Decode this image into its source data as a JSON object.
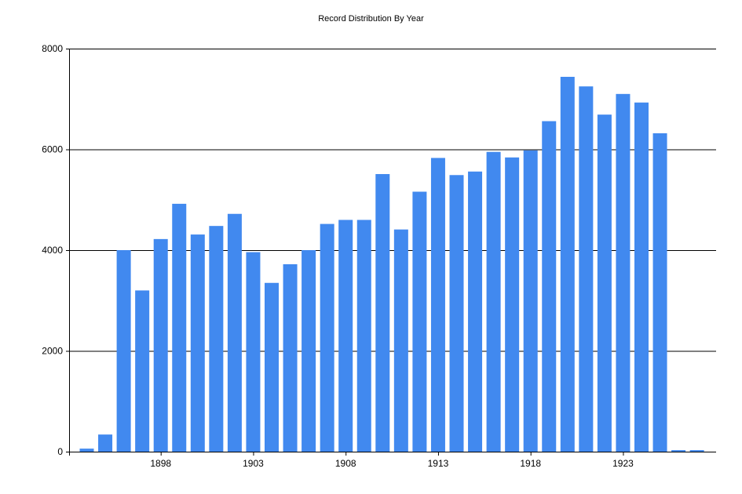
{
  "chart_data": {
    "type": "bar",
    "title": "Record Distribution By Year",
    "xlabel": "",
    "ylabel": "",
    "ylim": [
      0,
      8000
    ],
    "y_ticks": [
      0,
      2000,
      4000,
      6000,
      8000
    ],
    "x_tick_labels": [
      "1898",
      "1903",
      "1908",
      "1913",
      "1918",
      "1923"
    ],
    "grid": "horizontal",
    "bar_color": "#4189EF",
    "categories": [
      "1894",
      "1895",
      "1896",
      "1897",
      "1898",
      "1899",
      "1900",
      "1901",
      "1902",
      "1903",
      "1904",
      "1905",
      "1906",
      "1907",
      "1908",
      "1909",
      "1910",
      "1911",
      "1912",
      "1913",
      "1914",
      "1915",
      "1916",
      "1917",
      "1918",
      "1919",
      "1920",
      "1921",
      "1922",
      "1923",
      "1924",
      "1925",
      "1926",
      "1927"
    ],
    "values": [
      60,
      340,
      4000,
      3200,
      4220,
      4920,
      4310,
      4480,
      4720,
      3960,
      3350,
      3720,
      4000,
      4520,
      4600,
      4600,
      5510,
      4410,
      5160,
      5830,
      5490,
      5560,
      5950,
      5840,
      5980,
      6560,
      7440,
      7250,
      6690,
      7100,
      6930,
      6320,
      30,
      30
    ]
  }
}
